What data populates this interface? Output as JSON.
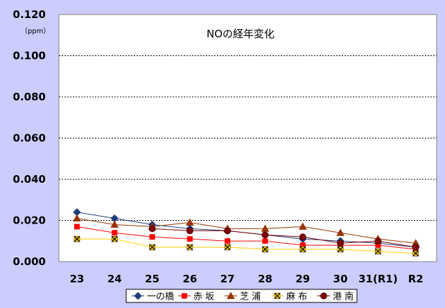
{
  "chart_data": {
    "type": "line",
    "title": "NOの経年変化",
    "unit": "（ppm）",
    "categories": [
      "23",
      "24",
      "25",
      "26",
      "27",
      "28",
      "29",
      "30",
      "31(R1)",
      "R2"
    ],
    "y_ticks": [
      "0.000",
      "0.020",
      "0.040",
      "0.060",
      "0.080",
      "0.100",
      "0.120"
    ],
    "ylim": [
      0,
      0.12
    ],
    "grid": true,
    "legend_position": "bottom",
    "series": [
      {
        "name": "一の橋",
        "color": "#1f3d7a",
        "marker": "diamond",
        "values": [
          0.024,
          0.021,
          0.018,
          0.016,
          0.015,
          0.013,
          0.011,
          0.01,
          0.009,
          0.007
        ]
      },
      {
        "name": "赤 坂",
        "color": "#ff0000",
        "marker": "square",
        "values": [
          0.017,
          0.014,
          0.012,
          0.011,
          0.01,
          0.01,
          0.008,
          0.008,
          0.008,
          0.006
        ]
      },
      {
        "name": "芝 浦",
        "color": "#993300",
        "marker": "triangle",
        "values": [
          0.021,
          0.018,
          0.017,
          0.019,
          0.016,
          0.016,
          0.017,
          0.014,
          0.011,
          0.009
        ]
      },
      {
        "name": "麻 布",
        "color": "#ffcc00",
        "marker": "x",
        "values": [
          0.011,
          0.011,
          0.007,
          0.007,
          0.007,
          0.006,
          0.006,
          0.006,
          0.005,
          0.004
        ]
      },
      {
        "name": "港 南",
        "color": "#800000",
        "marker": "circle",
        "values": [
          null,
          null,
          0.016,
          0.015,
          0.015,
          0.013,
          0.012,
          0.009,
          0.01,
          0.007
        ]
      }
    ]
  }
}
